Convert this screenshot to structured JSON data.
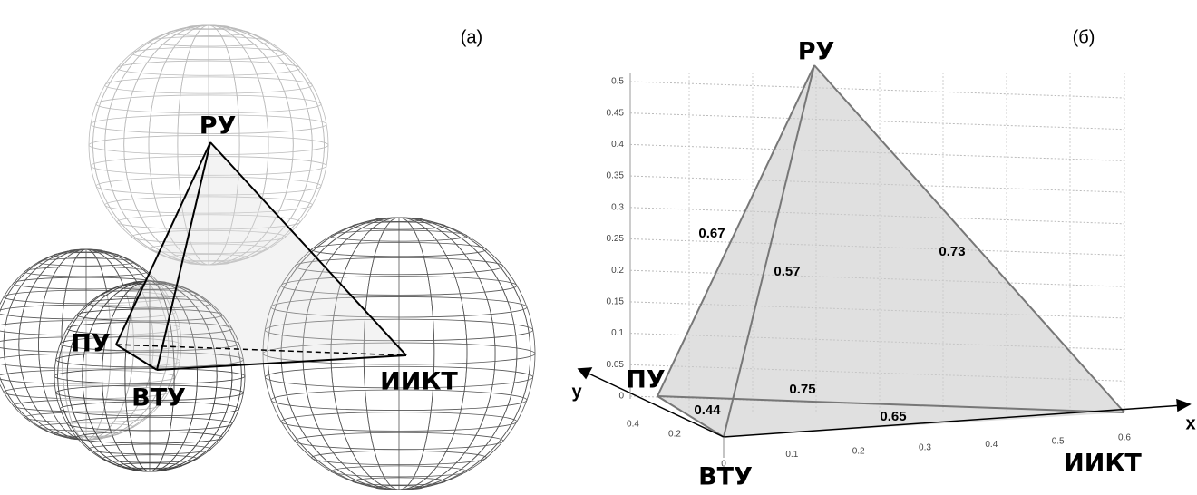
{
  "panel_a": {
    "label": "(а)",
    "vertices": [
      "РУ",
      "ПУ",
      "ВТУ",
      "ИИКТ"
    ]
  },
  "panel_b": {
    "label": "(б)",
    "vertices": [
      "РУ",
      "ПУ",
      "ВТУ",
      "ИИКТ"
    ],
    "edges": [
      {
        "from": "ПУ",
        "to": "РУ",
        "label": 0.67
      },
      {
        "from": "ВТУ",
        "to": "РУ",
        "label": 0.57
      },
      {
        "from": "ИИКТ",
        "to": "РУ",
        "label": 0.73
      },
      {
        "from": "ПУ",
        "to": "ИИКТ",
        "label": 0.75
      },
      {
        "from": "ПУ",
        "to": "ВТУ",
        "label": 0.44
      },
      {
        "from": "ВТУ",
        "to": "ИИКТ",
        "label": 0.65
      }
    ],
    "z_ticks": [
      0,
      0.05,
      0.1,
      0.15,
      0.2,
      0.25,
      0.3,
      0.35,
      0.4,
      0.45,
      0.5
    ],
    "x_ticks": [
      0,
      0.1,
      0.2,
      0.3,
      0.4,
      0.5,
      0.6
    ],
    "y_ticks": [
      0.4,
      0.2
    ],
    "x_axis": "x",
    "y_axis": "y"
  }
}
